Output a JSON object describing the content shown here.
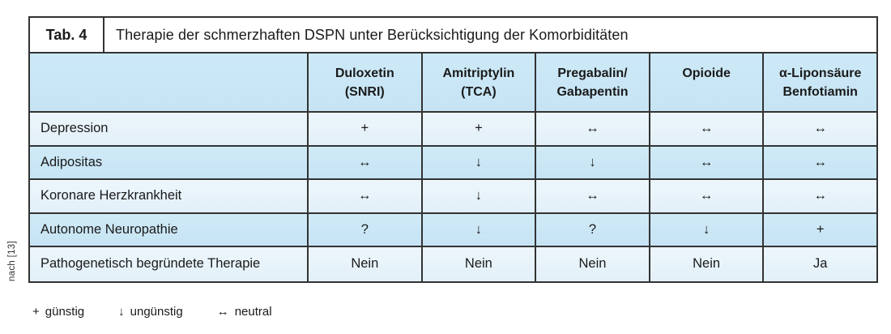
{
  "source_note": "nach [13]",
  "table": {
    "tab_label": "Tab. 4",
    "title": "Therapie der schmerzhaften DSPN unter Berücksichtigung der Komorbiditäten",
    "columns": [
      {
        "line1": "Duloxetin",
        "line2": "(SNRI)"
      },
      {
        "line1": "Amitriptylin",
        "line2": "(TCA)"
      },
      {
        "line1": "Pregabalin/",
        "line2": "Gabapentin"
      },
      {
        "line1": "Opioide",
        "line2": ""
      },
      {
        "line1": "α-Liponsäure",
        "line2": "Benfotiamin"
      }
    ],
    "rows": [
      {
        "label": "Depression",
        "values": [
          "+",
          "+",
          "↔",
          "↔",
          "↔"
        ]
      },
      {
        "label": "Adipositas",
        "values": [
          "↔",
          "↓",
          "↓",
          "↔",
          "↔"
        ]
      },
      {
        "label": "Koronare Herzkrankheit",
        "values": [
          "↔",
          "↓",
          "↔",
          "↔",
          "↔"
        ]
      },
      {
        "label": "Autonome Neuropathie",
        "values": [
          "?",
          "↓",
          "?",
          "↓",
          "+"
        ]
      },
      {
        "label": "Pathogenetisch begründete Therapie",
        "values": [
          "Nein",
          "Nein",
          "Nein",
          "Nein",
          "Ja"
        ]
      }
    ]
  },
  "legend": [
    {
      "symbol": "+",
      "label": "günstig"
    },
    {
      "symbol": "↓",
      "label": "ungünstig"
    },
    {
      "symbol": "↔",
      "label": "neutral"
    }
  ],
  "colors": {
    "border": "#333333",
    "header_bg": "#cbe7f6",
    "row_light": "#e8f3fb",
    "row_dark": "#cbe7f6",
    "title_bg": "#ffffff",
    "text": "#1a1a1a"
  }
}
